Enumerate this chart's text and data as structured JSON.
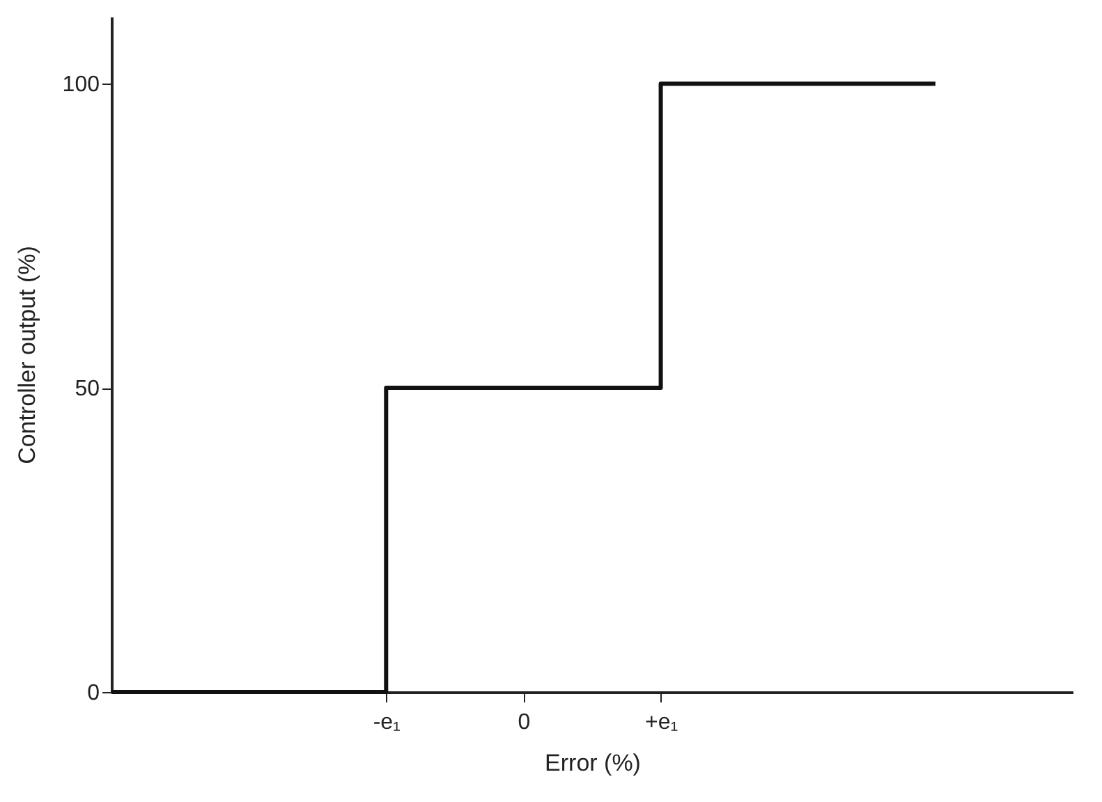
{
  "chart_data": {
    "type": "step",
    "xlabel": "Error (%)",
    "ylabel": "Controller output (%)",
    "categories": [
      null,
      null,
      "-e₁",
      "0",
      "+e₁",
      null,
      null,
      null
    ],
    "series": [
      {
        "color": "#111111",
        "values": [
          0,
          0,
          50,
          50,
          100,
          100,
          100,
          null
        ]
      }
    ],
    "ylim": [
      0,
      111
    ],
    "yticks": [
      0,
      50,
      100
    ],
    "grid": false,
    "legend": false,
    "marker": "none",
    "line_style": "solid"
  }
}
